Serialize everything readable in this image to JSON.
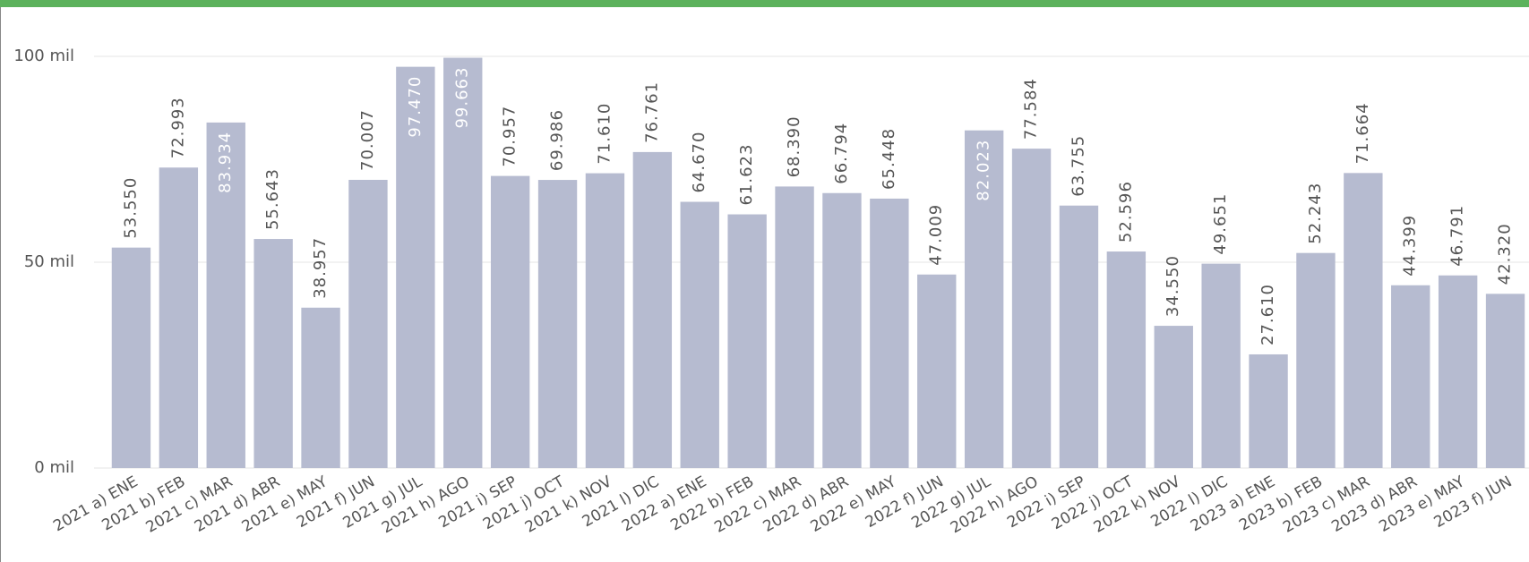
{
  "chart_data": {
    "type": "bar",
    "categories": [
      "2021 a) ENE",
      "2021 b) FEB",
      "2021 c) MAR",
      "2021 d) ABR",
      "2021 e) MAY",
      "2021 f) JUN",
      "2021 g) JUL",
      "2021 h) AGO",
      "2021 i) SEP",
      "2021 j) OCT",
      "2021 k) NOV",
      "2021 l) DIC",
      "2022 a) ENE",
      "2022 b) FEB",
      "2022 c) MAR",
      "2022 d) ABR",
      "2022 e) MAY",
      "2022 f) JUN",
      "2022 g) JUL",
      "2022 h) AGO",
      "2022 i) SEP",
      "2022 j) OCT",
      "2022 k) NOV",
      "2022 l) DIC",
      "2023 a) ENE",
      "2023 b) FEB",
      "2023 c) MAR",
      "2023 d) ABR",
      "2023 e) MAY",
      "2023 f) JUN"
    ],
    "values": [
      53550,
      72993,
      83934,
      55643,
      38957,
      70007,
      97470,
      99663,
      70957,
      69986,
      71610,
      76761,
      64670,
      61623,
      68390,
      66794,
      65448,
      47009,
      82023,
      77584,
      63755,
      52596,
      34550,
      49651,
      27610,
      52243,
      71664,
      44399,
      46791,
      42320
    ],
    "value_labels": [
      "53.550",
      "72.993",
      "83.934",
      "55.643",
      "38.957",
      "70.007",
      "97.470",
      "99.663",
      "70.957",
      "69.986",
      "71.610",
      "76.761",
      "64.670",
      "61.623",
      "68.390",
      "66.794",
      "65.448",
      "47.009",
      "82.023",
      "77.584",
      "63.755",
      "52.596",
      "34.550",
      "49.651",
      "27.610",
      "52.243",
      "71.664",
      "44.399",
      "46.791",
      "42.320"
    ],
    "color": "#b6bbd0",
    "ylim": [
      0,
      100000
    ],
    "yticks": [
      {
        "value": 0,
        "label": "0 mil"
      },
      {
        "value": 50000,
        "label": "50 mil"
      },
      {
        "value": 100000,
        "label": "100 mil"
      }
    ],
    "grid": true
  }
}
